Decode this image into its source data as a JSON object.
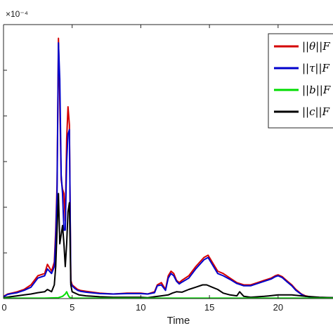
{
  "chart_data": {
    "type": "line",
    "title": "",
    "xlabel": "Time",
    "ylabel": "",
    "y_exponent_label": "×10⁻⁴",
    "xlim": [
      0,
      24
    ],
    "ylim": [
      0,
      6
    ],
    "x_ticks": [
      0,
      5,
      10,
      15,
      20
    ],
    "x_tick_labels": [
      "0",
      "5",
      "10",
      "15",
      "20"
    ],
    "y_ticks": [
      1,
      2,
      3,
      4,
      5
    ],
    "grid": false,
    "legend_position": "top-right",
    "series": [
      {
        "name": "||θ||F",
        "color": "#d40000",
        "x": [
          0,
          0.3,
          0.6,
          1,
          1.5,
          2,
          2.5,
          3,
          3.2,
          3.5,
          3.7,
          3.8,
          3.9,
          4,
          4.1,
          4.2,
          4.3,
          4.4,
          4.5,
          4.6,
          4.7,
          4.8,
          4.9,
          5,
          5.2,
          5.4,
          5.6,
          6,
          7,
          8,
          9,
          10,
          10.5,
          11,
          11.2,
          11.5,
          11.8,
          12,
          12.2,
          12.4,
          12.6,
          12.8,
          13,
          13.5,
          14,
          14.3,
          14.6,
          14.9,
          15.1,
          15.3,
          15.6,
          16,
          16.5,
          17,
          17.5,
          18,
          18.5,
          19,
          19.5,
          19.8,
          20,
          20.3,
          20.6,
          21,
          21.3,
          21.7,
          22,
          22.5,
          23,
          23.5,
          24
        ],
        "values": [
          0.05,
          0.1,
          0.12,
          0.15,
          0.2,
          0.3,
          0.5,
          0.55,
          0.75,
          0.6,
          0.8,
          1.5,
          2.5,
          5.7,
          4.3,
          2.6,
          2.4,
          2.3,
          1.7,
          3.5,
          4.2,
          3.8,
          0.4,
          0.3,
          0.25,
          0.2,
          0.18,
          0.16,
          0.12,
          0.1,
          0.12,
          0.12,
          0.1,
          0.15,
          0.3,
          0.35,
          0.2,
          0.5,
          0.6,
          0.55,
          0.4,
          0.35,
          0.4,
          0.5,
          0.7,
          0.8,
          0.9,
          0.95,
          0.85,
          0.75,
          0.6,
          0.55,
          0.45,
          0.35,
          0.3,
          0.3,
          0.35,
          0.4,
          0.45,
          0.5,
          0.52,
          0.48,
          0.4,
          0.3,
          0.2,
          0.1,
          0.06,
          0.03,
          0.02,
          0.02,
          0.02
        ]
      },
      {
        "name": "||τ||F",
        "color": "#0000cc",
        "x": [
          0,
          0.3,
          0.6,
          1,
          1.5,
          2,
          2.5,
          3,
          3.2,
          3.5,
          3.7,
          3.8,
          3.9,
          4,
          4.1,
          4.2,
          4.3,
          4.4,
          4.5,
          4.6,
          4.7,
          4.8,
          4.9,
          5,
          5.2,
          5.4,
          5.6,
          6,
          7,
          8,
          9,
          10,
          10.5,
          11,
          11.2,
          11.5,
          11.8,
          12,
          12.2,
          12.4,
          12.6,
          12.8,
          13,
          13.5,
          14,
          14.3,
          14.6,
          14.9,
          15.1,
          15.3,
          15.6,
          16,
          16.5,
          17,
          17.5,
          18,
          18.5,
          19,
          19.5,
          19.8,
          20,
          20.3,
          20.6,
          21,
          21.3,
          21.7,
          22,
          22.5,
          23,
          23.5,
          24
        ],
        "values": [
          0.04,
          0.09,
          0.11,
          0.13,
          0.18,
          0.25,
          0.45,
          0.5,
          0.65,
          0.55,
          0.7,
          1.3,
          2.3,
          5.6,
          4.8,
          2.7,
          2.3,
          1.5,
          1.5,
          3.0,
          3.6,
          3.7,
          0.35,
          0.28,
          0.22,
          0.18,
          0.16,
          0.14,
          0.11,
          0.1,
          0.11,
          0.11,
          0.1,
          0.13,
          0.28,
          0.3,
          0.18,
          0.45,
          0.55,
          0.5,
          0.38,
          0.32,
          0.36,
          0.45,
          0.65,
          0.75,
          0.85,
          0.9,
          0.8,
          0.7,
          0.55,
          0.5,
          0.42,
          0.33,
          0.28,
          0.28,
          0.33,
          0.38,
          0.43,
          0.48,
          0.5,
          0.46,
          0.38,
          0.28,
          0.18,
          0.09,
          0.05,
          0.03,
          0.02,
          0.02,
          0.02
        ]
      },
      {
        "name": "||b||F",
        "color": "#00dd00",
        "x": [
          0,
          1,
          2,
          3,
          4,
          4.3,
          4.5,
          4.6,
          4.7,
          4.8,
          5,
          6,
          10,
          15,
          20,
          24
        ],
        "values": [
          0.01,
          0.01,
          0.01,
          0.01,
          0.02,
          0.05,
          0.1,
          0.15,
          0.08,
          0.03,
          0.01,
          0.01,
          0.01,
          0.01,
          0.01,
          0.01
        ]
      },
      {
        "name": "||c||F",
        "color": "#000000",
        "x": [
          0,
          0.5,
          1,
          1.5,
          2,
          2.5,
          3,
          3.2,
          3.5,
          3.7,
          3.8,
          3.9,
          4,
          4.1,
          4.2,
          4.3,
          4.4,
          4.5,
          4.6,
          4.7,
          4.8,
          4.9,
          5,
          5.5,
          6,
          7,
          8,
          9,
          10,
          10.5,
          11,
          11.5,
          12,
          12.3,
          12.6,
          13,
          13.5,
          14,
          14.5,
          14.8,
          15.2,
          15.6,
          16,
          16.5,
          17,
          17.2,
          17.5,
          18,
          19,
          20,
          21,
          22,
          23,
          24
        ],
        "values": [
          0.02,
          0.04,
          0.06,
          0.08,
          0.1,
          0.13,
          0.15,
          0.2,
          0.15,
          0.3,
          0.7,
          1.5,
          2.3,
          1.2,
          1.4,
          1.6,
          1.2,
          0.7,
          1.2,
          1.9,
          2.1,
          0.3,
          0.15,
          0.08,
          0.06,
          0.04,
          0.03,
          0.03,
          0.03,
          0.02,
          0.04,
          0.06,
          0.08,
          0.12,
          0.15,
          0.14,
          0.2,
          0.25,
          0.3,
          0.3,
          0.25,
          0.2,
          0.12,
          0.08,
          0.06,
          0.15,
          0.05,
          0.03,
          0.05,
          0.08,
          0.08,
          0.05,
          0.03,
          0.02
        ]
      }
    ]
  }
}
